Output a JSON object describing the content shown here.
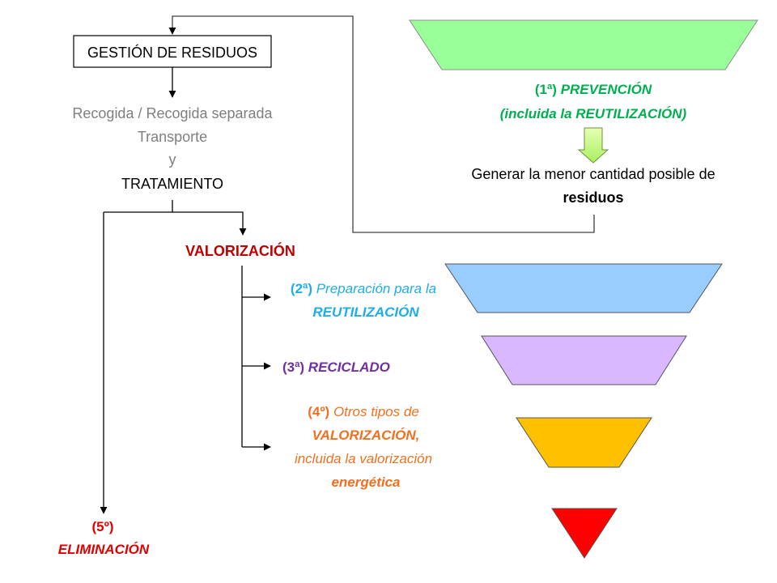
{
  "colors": {
    "red": "#C00000",
    "green_text": "#00B050",
    "blue_text": "#1EADE6",
    "purple_text": "#7030A0",
    "orange_text": "#F07020",
    "elim_red": "#E00000",
    "gray_text": "#7F7F7F",
    "prevention_fill": "#99FF99",
    "reuse_fill": "#99CCFF",
    "recycle_fill": "#D9B8FF",
    "recovery_fill": "#FFC000",
    "elimination_fill": "#FF0000"
  },
  "left": {
    "box_title": "GESTIÓN DE RESIDUOS",
    "step1": "Recogida / Recogida separada",
    "step2": "Transporte",
    "step3": "y",
    "step4": "TRATAMIENTO",
    "valorizacion": "VALORIZACIÓN",
    "elim_num": "(5º)",
    "elim_label": "ELIMINACIÓN"
  },
  "options": {
    "reuse_num": "(2ª)",
    "reuse_text": " Preparación para la",
    "reuse_bold": "REUTILIZACIÓN",
    "recycle_num": "(3ª)",
    "recycle_text": " RECICLADO",
    "recovery_num": "(4º)",
    "recovery_text": " Otros tipos de",
    "recovery_bold": "VALORIZACIÓN,",
    "recovery_line3": "incluida la valorización",
    "recovery_line4": "energética"
  },
  "prevention": {
    "num": "(1ª)",
    "label": " PREVENCIÓN",
    "sub": "(incluida la REUTILIZACIÓN)",
    "goal": "Generar la menor cantidad posible de",
    "goal_bold": "residuos"
  }
}
